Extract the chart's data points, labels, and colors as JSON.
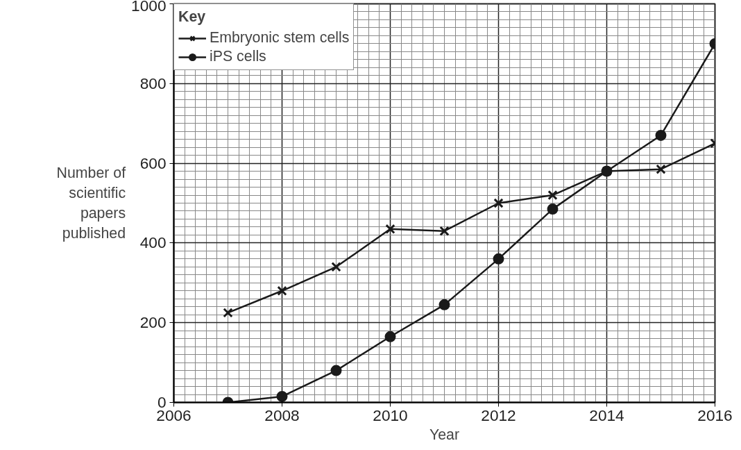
{
  "chart_data": {
    "type": "line",
    "xlabel": "Year",
    "ylabel": "Number of scientific papers published",
    "legend_title": "Key",
    "legend": "top left",
    "grid": true,
    "line_style": "solid",
    "x": [
      2007,
      2008,
      2009,
      2010,
      2011,
      2012,
      2013,
      2014,
      2015,
      2016
    ],
    "xlim": [
      2006,
      2016
    ],
    "xticks": [
      2006,
      2008,
      2010,
      2012,
      2014,
      2016
    ],
    "ylim": [
      0,
      1000
    ],
    "yticks": [
      0,
      200,
      400,
      600,
      800,
      1000
    ],
    "series": [
      {
        "name": "Embryonic stem cells",
        "color": "#1a1a1a",
        "marker": "cross",
        "values": [
          225,
          280,
          340,
          435,
          430,
          500,
          520,
          580,
          585,
          650
        ]
      },
      {
        "name": "iPS cells",
        "color": "#1a1a1a",
        "marker": "circle",
        "values": [
          0,
          15,
          80,
          165,
          245,
          360,
          485,
          580,
          670,
          900
        ]
      }
    ]
  }
}
